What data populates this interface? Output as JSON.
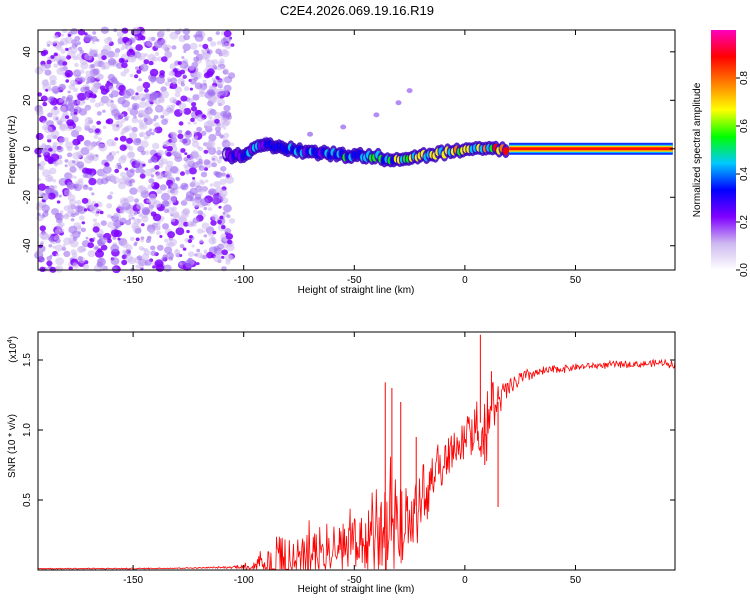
{
  "title": "C2E4.2026.069.19.16.R19",
  "chart_data": [
    {
      "type": "heatmap",
      "name": "spectrogram",
      "xlabel": "Height of straight line (km)",
      "ylabel": "Frequency (Hz)",
      "xlim": [
        -193,
        95
      ],
      "ylim": [
        -50,
        49
      ],
      "xticks": [
        -150,
        -100,
        -50,
        0,
        50
      ],
      "xtick_labels": [
        "-150",
        "-100",
        "-50",
        "0",
        "50"
      ],
      "yticks": [
        -40,
        -20,
        0,
        20,
        40
      ],
      "ytick_labels": [
        "-40",
        "-20",
        "0",
        "20",
        "40"
      ],
      "noise_region_x": [
        -193,
        -105
      ],
      "signal_track": [
        {
          "x": -108,
          "y": -3,
          "amp": 0.25
        },
        {
          "x": -100,
          "y": -2,
          "amp": 0.35
        },
        {
          "x": -95,
          "y": 0,
          "amp": 0.4
        },
        {
          "x": -88,
          "y": 1,
          "amp": 0.45
        },
        {
          "x": -80,
          "y": 0,
          "amp": 0.45
        },
        {
          "x": -72,
          "y": -1,
          "amp": 0.45
        },
        {
          "x": -65,
          "y": -2,
          "amp": 0.45
        },
        {
          "x": -58,
          "y": -2,
          "amp": 0.5
        },
        {
          "x": -50,
          "y": -3,
          "amp": 0.5
        },
        {
          "x": -42,
          "y": -3,
          "amp": 0.55
        },
        {
          "x": -35,
          "y": -4,
          "amp": 0.55
        },
        {
          "x": -28,
          "y": -4,
          "amp": 0.6
        },
        {
          "x": -20,
          "y": -3,
          "amp": 0.6
        },
        {
          "x": -12,
          "y": -2,
          "amp": 0.65
        },
        {
          "x": -5,
          "y": -1,
          "amp": 0.7
        },
        {
          "x": 2,
          "y": -1,
          "amp": 0.7
        },
        {
          "x": 8,
          "y": 0,
          "amp": 0.7
        },
        {
          "x": 14,
          "y": 0,
          "amp": 0.8
        },
        {
          "x": 20,
          "y": 0,
          "amp": 0.95
        },
        {
          "x": 92,
          "y": 0,
          "amp": 0.95
        }
      ],
      "faint_branch": [
        {
          "x": -90,
          "y": 4
        },
        {
          "x": -70,
          "y": 6
        },
        {
          "x": -55,
          "y": 9
        },
        {
          "x": -40,
          "y": 14
        },
        {
          "x": -30,
          "y": 19
        },
        {
          "x": -25,
          "y": 24
        }
      ]
    },
    {
      "type": "colorbar",
      "name": "colorbar",
      "label": "Normalized spectral amplitude",
      "ticks": [
        0.0,
        0.2,
        0.4,
        0.6,
        0.8
      ],
      "tick_labels": [
        "0.0",
        "0.2",
        "0.4",
        "0.6",
        "0.8"
      ],
      "range": [
        0,
        1
      ],
      "colors": [
        "#ffffff",
        "#cdb8f0",
        "#7f00ff",
        "#0000ff",
        "#00c8ff",
        "#00ff00",
        "#ffff00",
        "#ff7f00",
        "#ff0000",
        "#ff00bf"
      ]
    },
    {
      "type": "line",
      "name": "snr",
      "xlabel": "Height of straight line (km)",
      "ylabel": "SNR (10 * v/v)",
      "scale_base": "(x10",
      "scale_exp": "4",
      "scale_close": ")",
      "xlim": [
        -193,
        95
      ],
      "ylim": [
        0,
        1.7
      ],
      "xticks": [
        -150,
        -100,
        -50,
        0,
        50
      ],
      "xtick_labels": [
        "-150",
        "-100",
        "-50",
        "0",
        "50"
      ],
      "yticks": [
        0.5,
        1.0,
        1.5
      ],
      "ytick_labels": [
        "0.5",
        "1.0",
        "1.5"
      ],
      "color": "#ff0000",
      "envelope": {
        "x": [
          -193,
          -150,
          -120,
          -105,
          -100,
          -95,
          -90,
          -85,
          -80,
          -75,
          -70,
          -65,
          -60,
          -55,
          -50,
          -45,
          -40,
          -35,
          -30,
          -25,
          -20,
          -15,
          -10,
          -5,
          0,
          5,
          10,
          15,
          20,
          25,
          30,
          40,
          50,
          60,
          70,
          80,
          90,
          95
        ],
        "base": [
          0.01,
          0.01,
          0.015,
          0.02,
          0.03,
          0.04,
          0.06,
          0.08,
          0.1,
          0.12,
          0.14,
          0.16,
          0.18,
          0.2,
          0.22,
          0.24,
          0.27,
          0.3,
          0.34,
          0.4,
          0.5,
          0.65,
          0.78,
          0.88,
          0.95,
          1.02,
          1.1,
          1.2,
          1.3,
          1.36,
          1.4,
          1.43,
          1.45,
          1.46,
          1.47,
          1.47,
          1.48,
          1.47
        ],
        "spread": [
          0.005,
          0.005,
          0.005,
          0.01,
          0.03,
          0.08,
          0.15,
          0.25,
          0.25,
          0.22,
          0.25,
          0.25,
          0.22,
          0.22,
          0.25,
          0.3,
          0.45,
          0.6,
          0.35,
          0.3,
          0.35,
          0.2,
          0.2,
          0.15,
          0.15,
          0.2,
          0.35,
          0.15,
          0.1,
          0.08,
          0.05,
          0.04,
          0.03,
          0.03,
          0.03,
          0.03,
          0.03,
          0.04
        ]
      },
      "peaks": [
        {
          "x": -36,
          "y": 1.34
        },
        {
          "x": -33,
          "y": 1.3
        },
        {
          "x": -29,
          "y": 1.2
        },
        {
          "x": -22,
          "y": 0.95
        },
        {
          "x": 7,
          "y": 1.68
        },
        {
          "x": 12,
          "y": 1.42
        }
      ],
      "dips": [
        {
          "x": 9,
          "y": 0.75
        },
        {
          "x": 15,
          "y": 0.45
        }
      ]
    }
  ]
}
